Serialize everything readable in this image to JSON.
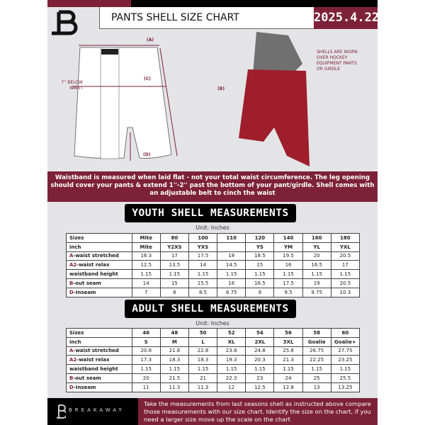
{
  "header": {
    "title": "PANTS SHELL SIZE CHART",
    "date": "2025.4.22"
  },
  "diagram": {
    "label_a": "(A)",
    "label_b": "(B)",
    "label_c": "(C)",
    "label_d": "(D)",
    "below_waist_note": "7'' BELOW WAIST",
    "worn_note": "SHELLS ARE WORN OVER HOCKEY EQUIPMENT PANTS OR GIRDLE"
  },
  "banner": "Waistband is measured when laid flat - not your total waist circumference. The leg opening should cover your pants & extend 1''-2'' past the bottom of your pant/girdle. Shell comes with an adjustable belt to cinch the waist",
  "youth": {
    "title": "YOUTH SHELL MEASUREMENTS",
    "unit": "Unit: Inches",
    "rows": [
      {
        "prefix": "",
        "label": "Sizes",
        "values": [
          "Mite",
          "80",
          "100",
          "110",
          "120",
          "140",
          "160",
          "180"
        ]
      },
      {
        "prefix": "",
        "label": "inch",
        "values": [
          "Mite",
          "Y2XS",
          "YXS",
          "",
          "YS",
          "YM",
          "YL",
          "YXL"
        ]
      },
      {
        "prefix": "A",
        "label": "-waist stretched",
        "values": [
          "16.3",
          "17",
          "17.5",
          "18",
          "18.5",
          "19.5",
          "20",
          "20.5"
        ]
      },
      {
        "prefix": "A2",
        "label": "-waist relax",
        "values": [
          "12.5",
          "13.5",
          "14",
          "14.5",
          "15",
          "16",
          "16.5",
          "17"
        ]
      },
      {
        "prefix": "",
        "label": "waistband height",
        "values": [
          "1.15",
          "1.15",
          "1.15",
          "1.15",
          "1.15",
          "1.15",
          "1.15",
          "1.15"
        ]
      },
      {
        "prefix": "B",
        "label": "-out seam",
        "values": [
          "14",
          "15",
          "15.5",
          "16",
          "16.5",
          "17.5",
          "19",
          "20.5"
        ]
      },
      {
        "prefix": "D",
        "label": "-Inseam",
        "values": [
          "7",
          "8",
          "8.5",
          "8.75",
          "9",
          "9.5",
          "9.75",
          "10.3"
        ]
      }
    ]
  },
  "adult": {
    "title": "ADULT SHELL MEASUREMENTS",
    "unit": "Unit: Inches",
    "rows": [
      {
        "prefix": "",
        "label": "Sizes",
        "values": [
          "46",
          "48",
          "50",
          "52",
          "54",
          "56",
          "58",
          "60"
        ]
      },
      {
        "prefix": "",
        "label": "inch",
        "values": [
          "S",
          "M",
          "L",
          "XL",
          "2XL",
          "3XL",
          "Goalie",
          "Goalie+"
        ]
      },
      {
        "prefix": "A",
        "label": "-waist stretched",
        "values": [
          "20.8",
          "21.8",
          "22.8",
          "23.8",
          "24.8",
          "25.8",
          "26.75",
          "27.75"
        ]
      },
      {
        "prefix": "A2",
        "label": "-waist relax",
        "values": [
          "17.3",
          "18.3",
          "18.3",
          "19.3",
          "20.3",
          "21.3",
          "22.25",
          "23.25"
        ]
      },
      {
        "prefix": "",
        "label": "waistband height",
        "values": [
          "1.15",
          "1.15",
          "1.15",
          "1.15",
          "1.15",
          "1.15",
          "1.15",
          "1.15"
        ]
      },
      {
        "prefix": "B",
        "label": "-out seam",
        "values": [
          "20",
          "21.5",
          "21",
          "22.3",
          "23",
          "24",
          "25",
          "25.5"
        ]
      },
      {
        "prefix": "D",
        "label": "-Inseam",
        "values": [
          "11",
          "11.3",
          "11.3",
          "12",
          "12.5",
          "12.8",
          "13",
          "13.25"
        ]
      }
    ]
  },
  "footer": {
    "brand": "BREAKAWAY",
    "note": "Take the measurements from last seasons shell as instructed above compare those measurements  with our size chart. Identify the size on the chart, if you need a larger size move up the scale on the chart"
  },
  "colors": {
    "accent": "#7d2139",
    "background": "#e4e4e6"
  }
}
